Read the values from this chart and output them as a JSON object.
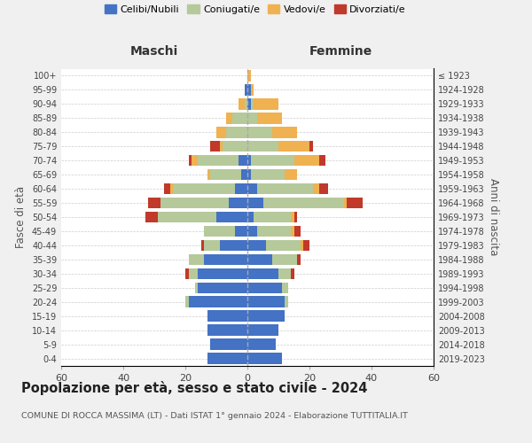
{
  "age_groups": [
    "0-4",
    "5-9",
    "10-14",
    "15-19",
    "20-24",
    "25-29",
    "30-34",
    "35-39",
    "40-44",
    "45-49",
    "50-54",
    "55-59",
    "60-64",
    "65-69",
    "70-74",
    "75-79",
    "80-84",
    "85-89",
    "90-94",
    "95-99",
    "100+"
  ],
  "birth_years": [
    "2019-2023",
    "2014-2018",
    "2009-2013",
    "2004-2008",
    "1999-2003",
    "1994-1998",
    "1989-1993",
    "1984-1988",
    "1979-1983",
    "1974-1978",
    "1969-1973",
    "1964-1968",
    "1959-1963",
    "1954-1958",
    "1949-1953",
    "1944-1948",
    "1939-1943",
    "1934-1938",
    "1929-1933",
    "1924-1928",
    "≤ 1923"
  ],
  "maschi": {
    "celibi": [
      13,
      12,
      13,
      13,
      19,
      16,
      16,
      14,
      9,
      4,
      10,
      6,
      4,
      2,
      3,
      0,
      0,
      0,
      0,
      1,
      0
    ],
    "coniugati": [
      0,
      0,
      0,
      0,
      1,
      1,
      3,
      5,
      5,
      10,
      19,
      22,
      20,
      10,
      13,
      8,
      7,
      5,
      1,
      0,
      0
    ],
    "vedovi": [
      0,
      0,
      0,
      0,
      0,
      0,
      0,
      0,
      0,
      0,
      0,
      0,
      1,
      1,
      2,
      1,
      3,
      2,
      2,
      0,
      0
    ],
    "divorziati": [
      0,
      0,
      0,
      0,
      0,
      0,
      1,
      0,
      1,
      0,
      4,
      4,
      2,
      0,
      1,
      3,
      0,
      0,
      0,
      0,
      0
    ]
  },
  "femmine": {
    "nubili": [
      11,
      9,
      10,
      12,
      12,
      11,
      10,
      8,
      6,
      3,
      2,
      5,
      3,
      1,
      1,
      0,
      0,
      0,
      1,
      1,
      0
    ],
    "coniugate": [
      0,
      0,
      0,
      0,
      1,
      2,
      4,
      8,
      11,
      11,
      12,
      26,
      18,
      11,
      14,
      10,
      8,
      3,
      1,
      0,
      0
    ],
    "vedove": [
      0,
      0,
      0,
      0,
      0,
      0,
      0,
      0,
      1,
      1,
      1,
      1,
      2,
      4,
      8,
      10,
      8,
      8,
      8,
      1,
      1
    ],
    "divorziate": [
      0,
      0,
      0,
      0,
      0,
      0,
      1,
      1,
      2,
      2,
      1,
      5,
      3,
      0,
      2,
      1,
      0,
      0,
      0,
      0,
      0
    ]
  },
  "colors": {
    "celibi": "#4472c4",
    "coniugati": "#b5c99a",
    "vedovi": "#f0b150",
    "divorziati": "#c0392b"
  },
  "xlim": 60,
  "title": "Popolazione per età, sesso e stato civile - 2024",
  "subtitle": "COMUNE DI ROCCA MASSIMA (LT) - Dati ISTAT 1° gennaio 2024 - Elaborazione TUTTITALIA.IT",
  "bg_color": "#f0f0f0",
  "plot_bg": "#ffffff"
}
